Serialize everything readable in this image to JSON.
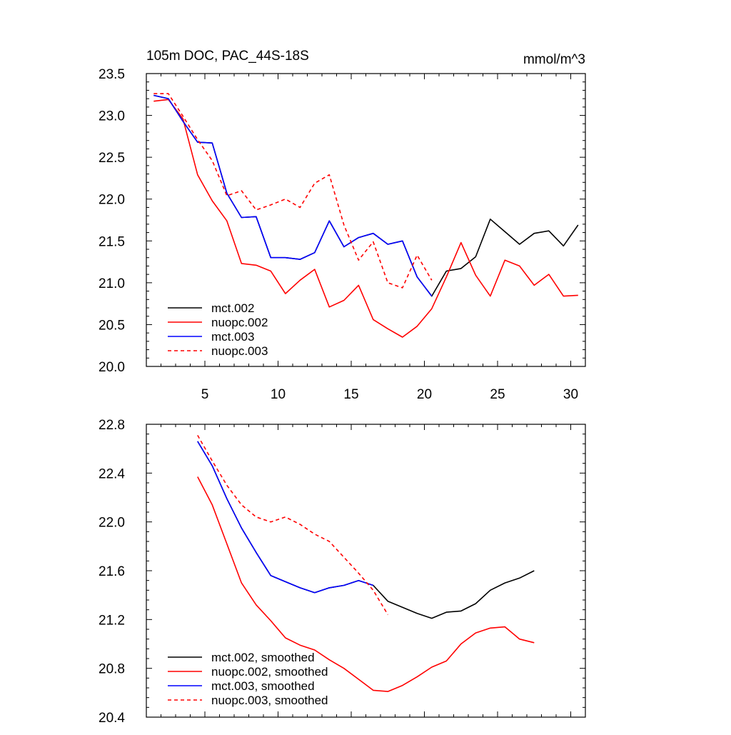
{
  "chart_data": [
    {
      "type": "line",
      "title": "105m DOC, PAC_44S-18S",
      "units": "mmol/m^3",
      "xlim": [
        1,
        31
      ],
      "ylim": [
        20.0,
        23.5
      ],
      "xticks": [
        5,
        10,
        15,
        20,
        25,
        30
      ],
      "yticks": [
        20.0,
        20.5,
        21.0,
        21.5,
        22.0,
        22.5,
        23.0,
        23.5
      ],
      "xtick_labels": [
        "5",
        "10",
        "15",
        "20",
        "25",
        "30"
      ],
      "ytick_labels": [
        "20.0",
        "20.5",
        "21.0",
        "21.5",
        "22.0",
        "22.5",
        "23.0",
        "23.5"
      ],
      "legend_position": "bottom-left",
      "series": [
        {
          "name": "mct.002",
          "color": "#000000",
          "dash": "solid",
          "x": [
            1.5,
            2.5,
            3.5,
            4.5,
            5.5,
            6.5,
            7.5,
            8.5,
            9.5,
            10.5,
            11.5,
            12.5,
            13.5,
            14.5,
            15.5,
            16.5,
            17.5,
            18.5,
            19.5,
            20.5,
            21.5,
            22.5,
            23.5,
            24.5,
            25.5,
            26.5,
            27.5,
            28.5,
            29.5,
            30.5
          ],
          "y": [
            23.24,
            23.2,
            22.93,
            22.68,
            22.67,
            22.07,
            21.78,
            21.79,
            21.3,
            21.3,
            21.28,
            21.36,
            21.74,
            21.43,
            21.54,
            21.59,
            21.46,
            21.5,
            21.07,
            20.84,
            21.14,
            21.17,
            21.31,
            21.76,
            21.61,
            21.46,
            21.59,
            21.62,
            21.44,
            21.69
          ]
        },
        {
          "name": "nuopc.002",
          "color": "#ff0000",
          "dash": "solid",
          "x": [
            1.5,
            2.5,
            3.5,
            4.5,
            5.5,
            6.5,
            7.5,
            8.5,
            9.5,
            10.5,
            11.5,
            12.5,
            13.5,
            14.5,
            15.5,
            16.5,
            17.5,
            18.5,
            19.5,
            20.5,
            21.5,
            22.5,
            23.5,
            24.5,
            25.5,
            26.5,
            27.5,
            28.5,
            29.5,
            30.5
          ],
          "y": [
            23.17,
            23.19,
            22.96,
            22.29,
            21.98,
            21.74,
            21.23,
            21.21,
            21.14,
            20.87,
            21.03,
            21.16,
            20.71,
            20.79,
            20.97,
            20.56,
            20.45,
            20.35,
            20.48,
            20.69,
            21.07,
            21.48,
            21.09,
            20.84,
            21.27,
            21.2,
            20.97,
            21.1,
            20.84,
            20.85
          ]
        },
        {
          "name": "mct.003",
          "color": "#0000ff",
          "dash": "solid",
          "x": [
            1.5,
            2.5,
            3.5,
            4.5,
            5.5,
            6.5,
            7.5,
            8.5,
            9.5,
            10.5,
            11.5,
            12.5,
            13.5,
            14.5,
            15.5,
            16.5,
            17.5,
            18.5,
            19.5,
            20.5
          ],
          "y": [
            23.24,
            23.2,
            22.93,
            22.68,
            22.67,
            22.07,
            21.78,
            21.79,
            21.3,
            21.3,
            21.28,
            21.36,
            21.74,
            21.43,
            21.54,
            21.59,
            21.46,
            21.5,
            21.07,
            20.84
          ]
        },
        {
          "name": "nuopc.003",
          "color": "#ff0000",
          "dash": "dashed",
          "x": [
            1.5,
            2.5,
            3.5,
            4.5,
            5.5,
            6.5,
            7.5,
            8.5,
            9.5,
            10.5,
            11.5,
            12.5,
            13.5,
            14.5,
            15.5,
            16.5,
            17.5,
            18.5,
            19.5,
            20.5
          ],
          "y": [
            23.26,
            23.26,
            22.99,
            22.71,
            22.46,
            22.04,
            22.1,
            21.87,
            21.93,
            22.0,
            21.9,
            22.19,
            22.29,
            21.69,
            21.27,
            21.49,
            21.0,
            20.94,
            21.33,
            21.03
          ]
        }
      ]
    },
    {
      "type": "line",
      "title": "",
      "xlim": [
        1,
        31
      ],
      "ylim": [
        20.4,
        22.8
      ],
      "xticks": [
        5,
        10,
        15,
        20,
        25,
        30
      ],
      "yticks": [
        20.4,
        20.8,
        21.2,
        21.6,
        22.0,
        22.4,
        22.8
      ],
      "ytick_labels": [
        "20.4",
        "20.8",
        "21.2",
        "21.6",
        "22.0",
        "22.4",
        "22.8"
      ],
      "legend_position": "bottom-left",
      "series": [
        {
          "name": "mct.002, smoothed",
          "color": "#000000",
          "dash": "solid",
          "x": [
            4.5,
            5.5,
            6.5,
            7.5,
            8.5,
            9.5,
            10.5,
            11.5,
            12.5,
            13.5,
            14.5,
            15.5,
            16.5,
            17.5,
            18.5,
            19.5,
            20.5,
            21.5,
            22.5,
            23.5,
            24.5,
            25.5,
            26.5,
            27.5
          ],
          "y": [
            22.66,
            22.46,
            22.19,
            21.95,
            21.75,
            21.56,
            21.51,
            21.46,
            21.42,
            21.46,
            21.48,
            21.52,
            21.48,
            21.35,
            21.3,
            21.25,
            21.21,
            21.26,
            21.27,
            21.33,
            21.44,
            21.5,
            21.54,
            21.6
          ]
        },
        {
          "name": "nuopc.002, smoothed",
          "color": "#ff0000",
          "dash": "solid",
          "x": [
            4.5,
            5.5,
            6.5,
            7.5,
            8.5,
            9.5,
            10.5,
            11.5,
            12.5,
            13.5,
            14.5,
            15.5,
            16.5,
            17.5,
            18.5,
            19.5,
            20.5,
            21.5,
            22.5,
            23.5,
            24.5,
            25.5,
            26.5,
            27.5
          ],
          "y": [
            22.37,
            22.14,
            21.82,
            21.5,
            21.32,
            21.19,
            21.05,
            20.99,
            20.95,
            20.87,
            20.8,
            20.71,
            20.62,
            20.61,
            20.66,
            20.73,
            20.81,
            20.86,
            21.0,
            21.09,
            21.13,
            21.14,
            21.04,
            21.01
          ]
        },
        {
          "name": "mct.003, smoothed",
          "color": "#0000ff",
          "dash": "solid",
          "x": [
            4.5,
            5.5,
            6.5,
            7.5,
            8.5,
            9.5,
            10.5,
            11.5,
            12.5,
            13.5,
            14.5,
            15.5,
            16.5
          ],
          "y": [
            22.66,
            22.46,
            22.19,
            21.95,
            21.75,
            21.56,
            21.51,
            21.46,
            21.42,
            21.46,
            21.48,
            21.52,
            21.48
          ]
        },
        {
          "name": "nuopc.003, smoothed",
          "color": "#ff0000",
          "dash": "dashed",
          "x": [
            4.5,
            5.5,
            6.5,
            7.5,
            8.5,
            9.5,
            10.5,
            11.5,
            12.5,
            13.5,
            14.5,
            15.5,
            16.5,
            17.5
          ],
          "y": [
            22.71,
            22.5,
            22.3,
            22.14,
            22.04,
            22.0,
            22.04,
            21.98,
            21.9,
            21.84,
            21.71,
            21.58,
            21.44,
            21.24
          ]
        }
      ]
    }
  ]
}
